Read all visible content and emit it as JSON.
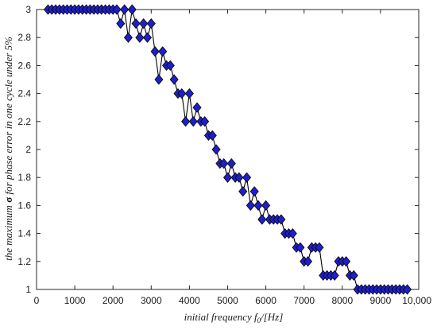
{
  "chart_data": {
    "type": "line",
    "title": "",
    "xlabel_prefix": "initial frequency ",
    "xlabel_var": "f",
    "xlabel_sub": "0",
    "xlabel_suffix": "/[Hz]",
    "ylabel_prefix": "the maximum ",
    "ylabel_sigma": "σ",
    "ylabel_suffix": " for phase error in one cycle under 5%",
    "xlim": [
      0,
      10000
    ],
    "ylim": [
      1,
      3
    ],
    "xticks": [
      0,
      1000,
      2000,
      3000,
      4000,
      5000,
      6000,
      7000,
      8000,
      9000,
      10000
    ],
    "xtick_labels": [
      "0",
      "1000",
      "2000",
      "3000",
      "4000",
      "5000",
      "6000",
      "7000",
      "8000",
      "9000",
      "10,000"
    ],
    "yticks": [
      1,
      1.2,
      1.4,
      1.6,
      1.8,
      2,
      2.2,
      2.4,
      2.6,
      2.8,
      3
    ],
    "ytick_labels": [
      "1",
      "1.2",
      "1.4",
      "1.6",
      "1.8",
      "2",
      "2.2",
      "2.4",
      "2.6",
      "2.8",
      "3"
    ],
    "grid": false,
    "line_color": "#000000",
    "marker_fill": "#1f1fc8",
    "marker_edge": "#000000",
    "marker": "diamond",
    "x": [
      300,
      400,
      500,
      600,
      700,
      800,
      900,
      1000,
      1100,
      1200,
      1300,
      1400,
      1500,
      1600,
      1700,
      1800,
      1900,
      2000,
      2100,
      2200,
      2300,
      2400,
      2500,
      2600,
      2700,
      2800,
      2900,
      3000,
      3100,
      3200,
      3300,
      3400,
      3500,
      3600,
      3700,
      3800,
      3900,
      4000,
      4100,
      4200,
      4300,
      4400,
      4500,
      4600,
      4700,
      4800,
      4900,
      5000,
      5100,
      5200,
      5300,
      5400,
      5500,
      5600,
      5700,
      5800,
      5900,
      6000,
      6100,
      6200,
      6300,
      6400,
      6500,
      6600,
      6700,
      6800,
      6900,
      7000,
      7100,
      7200,
      7300,
      7400,
      7500,
      7600,
      7700,
      7800,
      7900,
      8000,
      8100,
      8200,
      8300,
      8400,
      8500,
      8600,
      8700,
      8800,
      8900,
      9000,
      9100,
      9200,
      9300,
      9400,
      9500,
      9600,
      9700
    ],
    "y": [
      3,
      3,
      3,
      3,
      3,
      3,
      3,
      3,
      3,
      3,
      3,
      3,
      3,
      3,
      3,
      3,
      3,
      3,
      3,
      2.9,
      3,
      2.8,
      3,
      2.9,
      2.8,
      2.9,
      2.8,
      2.9,
      2.7,
      2.5,
      2.7,
      2.6,
      2.6,
      2.5,
      2.4,
      2.4,
      2.2,
      2.4,
      2.2,
      2.3,
      2.2,
      2.2,
      2.1,
      2.1,
      2.0,
      1.9,
      1.9,
      1.8,
      1.9,
      1.8,
      1.8,
      1.7,
      1.8,
      1.6,
      1.7,
      1.6,
      1.5,
      1.6,
      1.5,
      1.5,
      1.5,
      1.5,
      1.4,
      1.4,
      1.4,
      1.3,
      1.3,
      1.2,
      1.2,
      1.3,
      1.3,
      1.3,
      1.1,
      1.1,
      1.1,
      1.1,
      1.2,
      1.2,
      1.2,
      1.1,
      1.1,
      1,
      1,
      1,
      1,
      1,
      1,
      1,
      1,
      1,
      1,
      1,
      1,
      1,
      1
    ]
  }
}
